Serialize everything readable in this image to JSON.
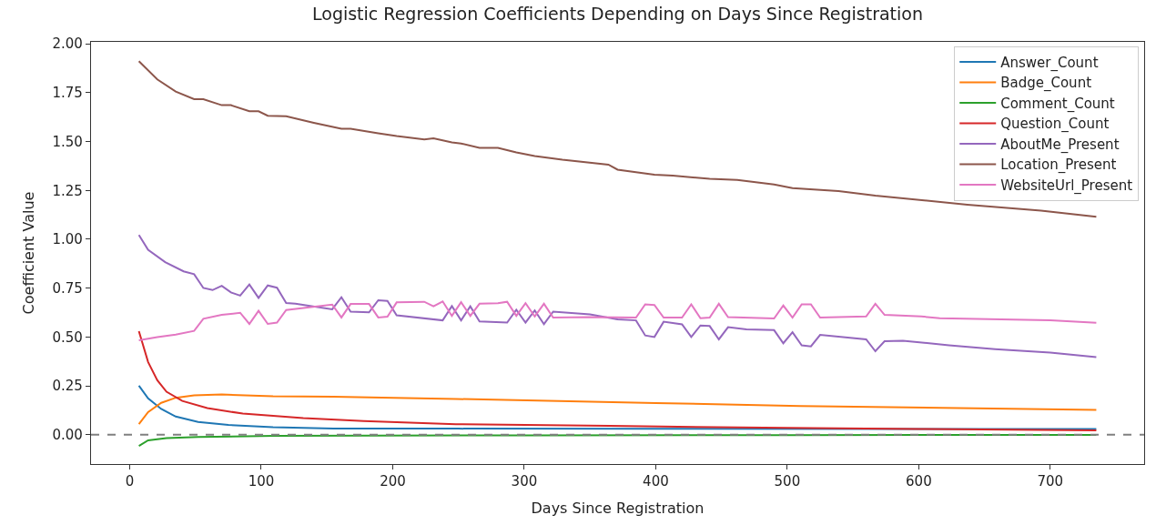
{
  "chart_data": {
    "type": "line",
    "title": "Logistic Regression Coefficients Depending on Days Since Registration",
    "xlabel": "Days Since Registration",
    "ylabel": "Coefficient Value",
    "xlim": [
      -29.4,
      771.4
    ],
    "xticks": [
      0,
      100,
      200,
      300,
      400,
      500,
      600,
      700
    ],
    "ylim": [
      -0.15,
      2.01
    ],
    "yticks": [
      {
        "value": 0,
        "label": "0.00"
      },
      {
        "value": 0.25,
        "label": "0.25"
      },
      {
        "value": 0.5,
        "label": "0.50"
      },
      {
        "value": 0.75,
        "label": "0.75"
      },
      {
        "value": 1,
        "label": "1.00"
      },
      {
        "value": 1.25,
        "label": "1.25"
      },
      {
        "value": 1.5,
        "label": "1.50"
      },
      {
        "value": 1.75,
        "label": "1.75"
      },
      {
        "value": 2,
        "label": "2.00"
      }
    ],
    "legend": "top right",
    "marker": "none",
    "line_style": "solid",
    "ref_lines": [
      {
        "axis": "y",
        "value": 0,
        "color": "#808080",
        "line_style": "dashed"
      }
    ],
    "series": [
      {
        "name": "Answer_Count",
        "color": "#1f77b4",
        "x": [
          7,
          14,
          24,
          35,
          52,
          75,
          109,
          155,
          250,
          400,
          735
        ],
        "values": [
          0.251,
          0.186,
          0.132,
          0.093,
          0.065,
          0.05,
          0.038,
          0.032,
          0.031,
          0.03,
          0.029
        ]
      },
      {
        "name": "Badge_Count",
        "color": "#ff7f0e",
        "x": [
          7,
          14,
          24,
          35,
          49,
          70,
          109,
          155,
          201,
          248,
          400,
          510,
          735
        ],
        "values": [
          0.054,
          0.116,
          0.163,
          0.189,
          0.201,
          0.206,
          0.197,
          0.194,
          0.189,
          0.183,
          0.162,
          0.147,
          0.127
        ]
      },
      {
        "name": "Comment_Count",
        "color": "#2ca02c",
        "x": [
          7,
          14,
          28,
          52,
          110,
          300,
          500,
          735
        ],
        "values": [
          -0.057,
          -0.029,
          -0.017,
          -0.011,
          -0.006,
          -0.003,
          -0.002,
          -0.001
        ]
      },
      {
        "name": "Question_Count",
        "color": "#d62728",
        "x": [
          7,
          14,
          21,
          28,
          40,
          59,
          86,
          132,
          178,
          248,
          365,
          500,
          600,
          735
        ],
        "values": [
          0.53,
          0.372,
          0.279,
          0.22,
          0.173,
          0.136,
          0.108,
          0.085,
          0.07,
          0.054,
          0.045,
          0.035,
          0.029,
          0.022
        ]
      },
      {
        "name": "AboutMe_Present",
        "color": "#9467bd",
        "x": [
          7,
          14,
          27,
          41,
          49,
          56,
          63,
          70,
          77,
          84,
          91,
          98,
          105,
          112,
          119,
          126,
          154,
          161,
          168,
          182,
          189,
          196,
          203,
          238,
          245,
          252,
          259,
          266,
          287,
          294,
          301,
          308,
          315,
          322,
          350,
          371,
          385,
          392,
          399,
          406,
          420,
          427,
          434,
          441,
          448,
          455,
          469,
          490,
          497,
          504,
          511,
          518,
          525,
          560,
          567,
          574,
          588,
          623,
          658,
          700,
          735
        ],
        "values": [
          1.022,
          0.946,
          0.883,
          0.836,
          0.821,
          0.751,
          0.74,
          0.762,
          0.728,
          0.712,
          0.769,
          0.7,
          0.764,
          0.752,
          0.674,
          0.67,
          0.642,
          0.703,
          0.63,
          0.626,
          0.688,
          0.685,
          0.611,
          0.585,
          0.658,
          0.585,
          0.657,
          0.58,
          0.574,
          0.639,
          0.574,
          0.636,
          0.566,
          0.63,
          0.616,
          0.59,
          0.585,
          0.508,
          0.5,
          0.578,
          0.565,
          0.5,
          0.559,
          0.556,
          0.488,
          0.55,
          0.539,
          0.535,
          0.468,
          0.524,
          0.457,
          0.452,
          0.511,
          0.488,
          0.427,
          0.478,
          0.481,
          0.458,
          0.438,
          0.42,
          0.397
        ]
      },
      {
        "name": "Location_Present",
        "color": "#8c564b",
        "x": [
          7,
          21,
          35,
          49,
          56,
          70,
          77,
          91,
          98,
          105,
          119,
          140,
          161,
          168,
          189,
          203,
          224,
          231,
          245,
          252,
          266,
          280,
          294,
          308,
          329,
          364,
          371,
          399,
          413,
          441,
          462,
          490,
          504,
          539,
          567,
          637,
          693,
          735
        ],
        "values": [
          1.911,
          1.818,
          1.756,
          1.717,
          1.717,
          1.686,
          1.686,
          1.655,
          1.655,
          1.632,
          1.629,
          1.596,
          1.565,
          1.565,
          1.542,
          1.528,
          1.511,
          1.516,
          1.496,
          1.49,
          1.468,
          1.468,
          1.444,
          1.426,
          1.407,
          1.382,
          1.356,
          1.33,
          1.326,
          1.309,
          1.303,
          1.28,
          1.262,
          1.246,
          1.223,
          1.177,
          1.146,
          1.115
        ]
      },
      {
        "name": "WebsiteUrl_Present",
        "color": "#e377c2",
        "x": [
          7,
          21,
          35,
          49,
          56,
          70,
          84,
          91,
          98,
          105,
          112,
          119,
          154,
          161,
          168,
          182,
          189,
          196,
          203,
          224,
          231,
          238,
          245,
          252,
          259,
          266,
          280,
          287,
          294,
          301,
          308,
          315,
          322,
          350,
          385,
          392,
          399,
          406,
          420,
          427,
          434,
          441,
          448,
          455,
          490,
          497,
          504,
          511,
          518,
          525,
          560,
          567,
          574,
          602,
          616,
          700,
          735
        ],
        "values": [
          0.483,
          0.499,
          0.512,
          0.531,
          0.593,
          0.613,
          0.624,
          0.567,
          0.634,
          0.567,
          0.574,
          0.638,
          0.666,
          0.6,
          0.669,
          0.669,
          0.6,
          0.604,
          0.677,
          0.68,
          0.657,
          0.682,
          0.608,
          0.678,
          0.608,
          0.67,
          0.673,
          0.68,
          0.608,
          0.673,
          0.605,
          0.67,
          0.599,
          0.602,
          0.599,
          0.667,
          0.664,
          0.599,
          0.599,
          0.667,
          0.596,
          0.599,
          0.67,
          0.602,
          0.595,
          0.661,
          0.599,
          0.667,
          0.667,
          0.599,
          0.605,
          0.67,
          0.613,
          0.605,
          0.596,
          0.585,
          0.573
        ]
      }
    ]
  }
}
